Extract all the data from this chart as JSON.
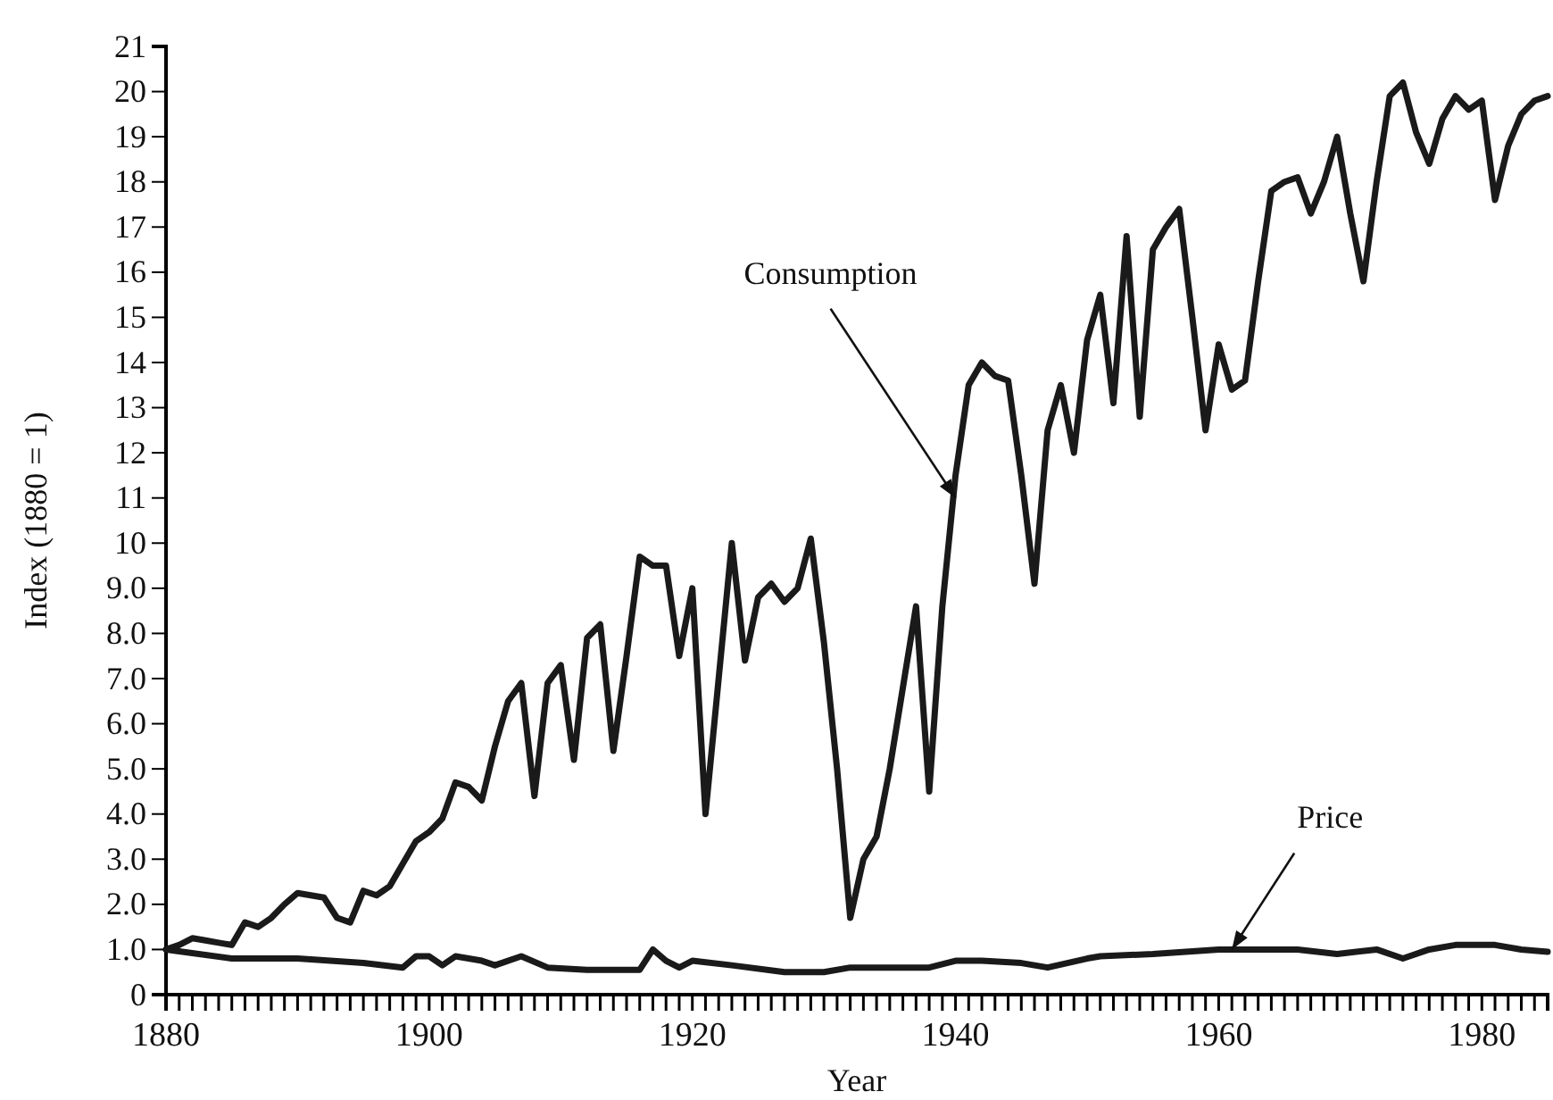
{
  "chart_data": {
    "type": "line",
    "xlabel": "Year",
    "ylabel": "Index (1880 = 1)",
    "xlim": [
      1880,
      1985
    ],
    "ylim": [
      0,
      21
    ],
    "xticks": [
      1880,
      {
        "value": 1881,
        "label": null
      },
      {
        "value": 1882,
        "label": null
      },
      {
        "value": 1883,
        "label": null
      },
      {
        "value": 1884,
        "label": null
      },
      {
        "value": 1885,
        "label": null
      },
      {
        "value": 1886,
        "label": null
      },
      {
        "value": 1887,
        "label": null
      },
      {
        "value": 1888,
        "label": null
      },
      {
        "value": 1889,
        "label": null
      },
      {
        "value": 1890,
        "label": null
      },
      {
        "value": 1891,
        "label": null
      },
      {
        "value": 1892,
        "label": null
      },
      {
        "value": 1893,
        "label": null
      },
      {
        "value": 1894,
        "label": null
      },
      {
        "value": 1895,
        "label": null
      },
      {
        "value": 1896,
        "label": null
      },
      {
        "value": 1897,
        "label": null
      },
      {
        "value": 1898,
        "label": null
      },
      {
        "value": 1899,
        "label": null
      },
      1900,
      {
        "value": 1901,
        "label": null
      },
      {
        "value": 1902,
        "label": null
      },
      {
        "value": 1903,
        "label": null
      },
      {
        "value": 1904,
        "label": null
      },
      {
        "value": 1905,
        "label": null
      },
      {
        "value": 1906,
        "label": null
      },
      {
        "value": 1907,
        "label": null
      },
      {
        "value": 1908,
        "label": null
      },
      {
        "value": 1909,
        "label": null
      },
      {
        "value": 1910,
        "label": null
      },
      {
        "value": 1911,
        "label": null
      },
      {
        "value": 1912,
        "label": null
      },
      {
        "value": 1913,
        "label": null
      },
      {
        "value": 1914,
        "label": null
      },
      {
        "value": 1915,
        "label": null
      },
      {
        "value": 1916,
        "label": null
      },
      {
        "value": 1917,
        "label": null
      },
      {
        "value": 1918,
        "label": null
      },
      {
        "value": 1919,
        "label": null
      },
      1920,
      {
        "value": 1921,
        "label": null
      },
      {
        "value": 1922,
        "label": null
      },
      {
        "value": 1923,
        "label": null
      },
      {
        "value": 1924,
        "label": null
      },
      {
        "value": 1925,
        "label": null
      },
      {
        "value": 1926,
        "label": null
      },
      {
        "value": 1927,
        "label": null
      },
      {
        "value": 1928,
        "label": null
      },
      {
        "value": 1929,
        "label": null
      },
      {
        "value": 1930,
        "label": null
      },
      {
        "value": 1931,
        "label": null
      },
      {
        "value": 1932,
        "label": null
      },
      {
        "value": 1933,
        "label": null
      },
      {
        "value": 1934,
        "label": null
      },
      {
        "value": 1935,
        "label": null
      },
      {
        "value": 1936,
        "label": null
      },
      {
        "value": 1937,
        "label": null
      },
      {
        "value": 1938,
        "label": null
      },
      {
        "value": 1939,
        "label": null
      },
      1940,
      {
        "value": 1941,
        "label": null
      },
      {
        "value": 1942,
        "label": null
      },
      {
        "value": 1943,
        "label": null
      },
      {
        "value": 1944,
        "label": null
      },
      {
        "value": 1945,
        "label": null
      },
      {
        "value": 1946,
        "label": null
      },
      {
        "value": 1947,
        "label": null
      },
      {
        "value": 1948,
        "label": null
      },
      {
        "value": 1949,
        "label": null
      },
      {
        "value": 1950,
        "label": null
      },
      {
        "value": 1951,
        "label": null
      },
      {
        "value": 1952,
        "label": null
      },
      {
        "value": 1953,
        "label": null
      },
      {
        "value": 1954,
        "label": null
      },
      {
        "value": 1955,
        "label": null
      },
      {
        "value": 1956,
        "label": null
      },
      {
        "value": 1957,
        "label": null
      },
      {
        "value": 1958,
        "label": null
      },
      {
        "value": 1959,
        "label": null
      },
      1960,
      {
        "value": 1961,
        "label": null
      },
      {
        "value": 1962,
        "label": null
      },
      {
        "value": 1963,
        "label": null
      },
      {
        "value": 1964,
        "label": null
      },
      {
        "value": 1965,
        "label": null
      },
      {
        "value": 1966,
        "label": null
      },
      {
        "value": 1967,
        "label": null
      },
      {
        "value": 1968,
        "label": null
      },
      {
        "value": 1969,
        "label": null
      },
      {
        "value": 1970,
        "label": null
      },
      {
        "value": 1971,
        "label": null
      },
      {
        "value": 1972,
        "label": null
      },
      {
        "value": 1973,
        "label": null
      },
      {
        "value": 1974,
        "label": null
      },
      {
        "value": 1975,
        "label": null
      },
      {
        "value": 1976,
        "label": null
      },
      {
        "value": 1977,
        "label": null
      },
      {
        "value": 1978,
        "label": null
      },
      {
        "value": 1979,
        "label": null
      },
      1980,
      {
        "value": 1981,
        "label": null
      },
      {
        "value": 1982,
        "label": null
      },
      {
        "value": 1983,
        "label": null
      },
      {
        "value": 1984,
        "label": null
      },
      {
        "value": 1985,
        "label": null
      }
    ],
    "yticks": [
      0,
      {
        "value": 1,
        "label": "1.0"
      },
      {
        "value": 2,
        "label": "2.0"
      },
      {
        "value": 3,
        "label": "3.0"
      },
      {
        "value": 4,
        "label": "4.0"
      },
      {
        "value": 5,
        "label": "5.0"
      },
      {
        "value": 6,
        "label": "6.0"
      },
      {
        "value": 7,
        "label": "7.0"
      },
      {
        "value": 8,
        "label": "8.0"
      },
      {
        "value": 9,
        "label": "9.0"
      },
      10,
      11,
      12,
      13,
      14,
      15,
      16,
      17,
      18,
      19,
      20,
      21
    ],
    "series": [
      {
        "color": "#1a1a1a",
        "x": [
          1880,
          1881,
          1882,
          1883,
          1884,
          1885,
          1886,
          1887,
          1888,
          1889,
          1890,
          1891,
          1892,
          1893,
          1894,
          1895,
          1896,
          1897,
          1898,
          1899,
          1900,
          1901,
          1902,
          1903,
          1904,
          1905,
          1906,
          1907,
          1908,
          1909,
          1910,
          1911,
          1912,
          1913,
          1914,
          1915,
          1916,
          1917,
          1918,
          1919,
          1920,
          1921,
          1922,
          1923,
          1924,
          1925,
          1926,
          1927,
          1928,
          1929,
          1930,
          1931,
          1932,
          1933,
          1934,
          1935,
          1936,
          1937,
          1938,
          1939,
          1940,
          1941,
          1942,
          1943,
          1944,
          1945,
          1946,
          1947,
          1948,
          1949,
          1950,
          1951,
          1952,
          1953,
          1954,
          1955,
          1956,
          1957,
          1958,
          1959,
          1960,
          1961,
          1962,
          1963,
          1964,
          1965,
          1966,
          1967,
          1968,
          1969,
          1970,
          1971,
          1972,
          1973,
          1974,
          1975,
          1976,
          1977,
          1978,
          1979,
          1980,
          1981,
          1982,
          1983,
          1984,
          1985
        ],
        "values": [
          1.0,
          1.1,
          1.25,
          1.2,
          1.15,
          1.1,
          1.6,
          1.5,
          1.7,
          2.0,
          2.25,
          2.2,
          2.15,
          1.7,
          1.6,
          2.3,
          2.2,
          2.4,
          2.9,
          3.4,
          3.6,
          3.9,
          4.7,
          4.6,
          4.3,
          5.5,
          6.5,
          6.9,
          4.4,
          6.9,
          7.3,
          5.2,
          7.9,
          8.2,
          5.4,
          7.5,
          9.7,
          9.5,
          9.5,
          7.5,
          9.0,
          4.0,
          7.0,
          10.0,
          7.4,
          8.8,
          9.1,
          8.7,
          9.0,
          10.1,
          7.8,
          5.0,
          1.7,
          3.0,
          3.5,
          5.0,
          6.8,
          8.6,
          4.5,
          8.6,
          11.5,
          13.5,
          14.0,
          13.7,
          13.6,
          11.5,
          9.1,
          12.5,
          13.5,
          12.0,
          14.5,
          15.5,
          13.1,
          16.8,
          12.8,
          16.5,
          17.0,
          17.4,
          15.0,
          12.5,
          14.4,
          13.4,
          13.6,
          15.8,
          17.8,
          18.0,
          18.1,
          17.3,
          18.0,
          19.0,
          17.3,
          15.8,
          18.0,
          19.9,
          20.2,
          19.1,
          18.4,
          19.4,
          19.9,
          19.6,
          19.8,
          17.6,
          18.8,
          19.5,
          19.8,
          19.9
        ]
      },
      {
        "color": "#1a1a1a",
        "x": [
          1880,
          1885,
          1890,
          1895,
          1898,
          1899,
          1900,
          1901,
          1902,
          1904,
          1905,
          1907,
          1909,
          1912,
          1916,
          1917,
          1918,
          1919,
          1920,
          1923,
          1927,
          1930,
          1932,
          1938,
          1940,
          1942,
          1945,
          1947,
          1950,
          1951,
          1955,
          1960,
          1966,
          1969,
          1972,
          1974,
          1976,
          1978,
          1981,
          1983,
          1985
        ],
        "values": [
          1.0,
          0.8,
          0.8,
          0.7,
          0.6,
          0.85,
          0.85,
          0.65,
          0.85,
          0.75,
          0.65,
          0.85,
          0.6,
          0.55,
          0.55,
          1.0,
          0.75,
          0.6,
          0.75,
          0.65,
          0.5,
          0.5,
          0.6,
          0.6,
          0.75,
          0.75,
          0.7,
          0.6,
          0.8,
          0.85,
          0.9,
          1.0,
          1.0,
          0.9,
          1.0,
          0.8,
          1.0,
          1.1,
          1.1,
          1.0,
          0.95
        ]
      }
    ],
    "annotations": [
      {
        "text": "Consumption",
        "x": 1940,
        "y": 11
      },
      {
        "text": "Price",
        "x": 1961,
        "y": 1.0
      }
    ],
    "grid": false,
    "marker": "none",
    "line_style": "solid"
  }
}
